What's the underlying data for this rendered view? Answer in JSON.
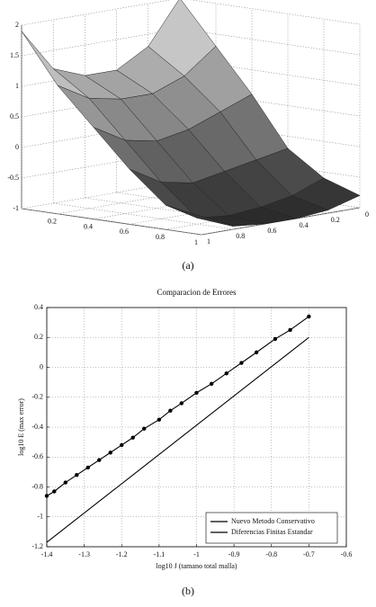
{
  "chart_data": [
    {
      "type": "surface",
      "caption": "(a)",
      "x": [
        0,
        0.2,
        0.4,
        0.6,
        0.8,
        1
      ],
      "y": [
        0,
        0.2,
        0.4,
        0.6,
        0.8,
        1
      ],
      "z": [
        [
          2.0,
          1.3,
          1.0,
          1.0,
          1.2,
          1.9
        ],
        [
          1.3,
          0.9,
          0.7,
          0.7,
          0.8,
          1.1
        ],
        [
          0.6,
          0.4,
          0.2,
          0.1,
          0.2,
          0.5
        ],
        [
          -0.2,
          -0.3,
          -0.4,
          -0.5,
          -0.4,
          -0.1
        ],
        [
          -0.6,
          -0.8,
          -0.9,
          -0.95,
          -0.9,
          -0.6
        ],
        [
          -0.8,
          -0.95,
          -1.0,
          -1.0,
          -0.95,
          -0.7
        ]
      ],
      "xlim": [
        0,
        1
      ],
      "ylim": [
        0,
        1
      ],
      "zlim": [
        -1,
        2
      ],
      "xticks": [
        0.2,
        0.4,
        0.6,
        0.8,
        1
      ],
      "yticks": [
        0,
        0.2,
        0.4,
        0.6,
        0.8,
        1
      ],
      "zticks": [
        -1,
        -0.5,
        0,
        0.5,
        1,
        1.5,
        2
      ],
      "grid": true
    },
    {
      "type": "line",
      "caption": "(b)",
      "title": "Comparacion de Errores",
      "xlabel": "log10 J (tamano total malla)",
      "ylabel": "log10 E (max error)",
      "xlim": [
        -1.4,
        -0.6
      ],
      "ylim": [
        -1.2,
        0.4
      ],
      "xticks": [
        -1.4,
        -1.3,
        -1.2,
        -1.1,
        -1,
        -0.9,
        -0.8,
        -0.7,
        -0.6
      ],
      "yticks": [
        -1.2,
        -1,
        -0.8,
        -0.6,
        -0.4,
        -0.2,
        0,
        0.2,
        0.4
      ],
      "grid": true,
      "legend": "lower right",
      "series": [
        {
          "name": "Nuevo Metodo Conservativo",
          "color": "#000000",
          "markers": true,
          "x": [
            -1.4,
            -1.38,
            -1.35,
            -1.32,
            -1.29,
            -1.26,
            -1.23,
            -1.2,
            -1.17,
            -1.14,
            -1.1,
            -1.07,
            -1.04,
            -1.0,
            -0.96,
            -0.92,
            -0.88,
            -0.84,
            -0.79,
            -0.75,
            -0.7
          ],
          "values": [
            -0.86,
            -0.83,
            -0.77,
            -0.72,
            -0.67,
            -0.62,
            -0.57,
            -0.52,
            -0.47,
            -0.41,
            -0.35,
            -0.29,
            -0.24,
            -0.17,
            -0.11,
            -0.04,
            0.03,
            0.1,
            0.19,
            0.25,
            0.34
          ]
        },
        {
          "name": "Diferencias Finitas Estandar",
          "color": "#000000",
          "markers": false,
          "x": [
            -1.4,
            -0.7
          ],
          "values": [
            -1.17,
            0.2
          ]
        }
      ]
    }
  ]
}
